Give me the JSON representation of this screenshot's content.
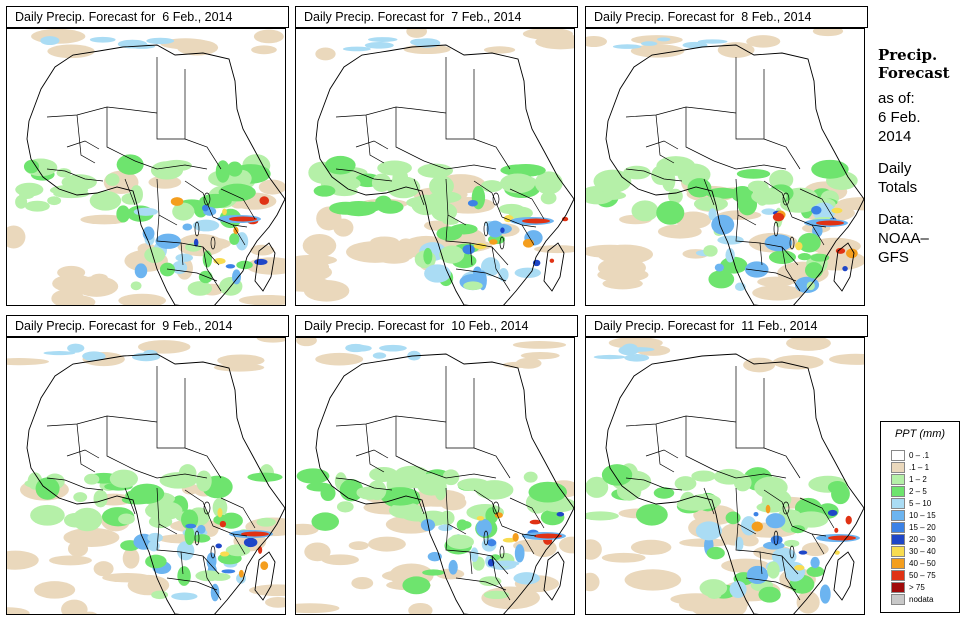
{
  "panels": [
    {
      "title": "Daily Precip. Forecast for  6 Feb., 2014",
      "day": 6
    },
    {
      "title": "Daily Precip. Forecast for  7 Feb., 2014",
      "day": 7
    },
    {
      "title": "Daily Precip. Forecast for  8 Feb., 2014",
      "day": 8
    },
    {
      "title": "Daily Precip. Forecast for  9 Feb., 2014",
      "day": 9
    },
    {
      "title": "Daily Precip. Forecast for  10 Feb., 2014",
      "day": 10
    },
    {
      "title": "Daily Precip. Forecast for  11 Feb., 2014",
      "day": 11
    }
  ],
  "sidebar": {
    "heading_line1": "Precip.",
    "heading_line2": "Forecast",
    "asof_label": "as of:",
    "asof_date": "6 Feb.",
    "asof_year": "2014",
    "totals_line1": "Daily",
    "totals_line2": "Totals",
    "data_label": "Data:",
    "data_source1": "NOAA–",
    "data_source2": "GFS"
  },
  "legend": {
    "title": "PPT (mm)",
    "items": [
      {
        "label": "0 – .1",
        "color": "#ffffff"
      },
      {
        "label": ".1 – 1",
        "color": "#ead8bc"
      },
      {
        "label": "1 – 2",
        "color": "#b5f0a8"
      },
      {
        "label": "2 – 5",
        "color": "#6ee46e"
      },
      {
        "label": "5 – 10",
        "color": "#aadcf4"
      },
      {
        "label": "10 – 15",
        "color": "#6cb4f0"
      },
      {
        "label": "15 – 20",
        "color": "#3c82e6"
      },
      {
        "label": "20 – 30",
        "color": "#1e46c8"
      },
      {
        "label": "30 – 40",
        "color": "#f8dc50"
      },
      {
        "label": "40 – 50",
        "color": "#f49e1e"
      },
      {
        "label": "50 – 75",
        "color": "#e03214"
      },
      {
        "label": "> 75",
        "color": "#a00a0a"
      },
      {
        "label": "nodata",
        "color": "#c8c8c8"
      }
    ]
  }
}
